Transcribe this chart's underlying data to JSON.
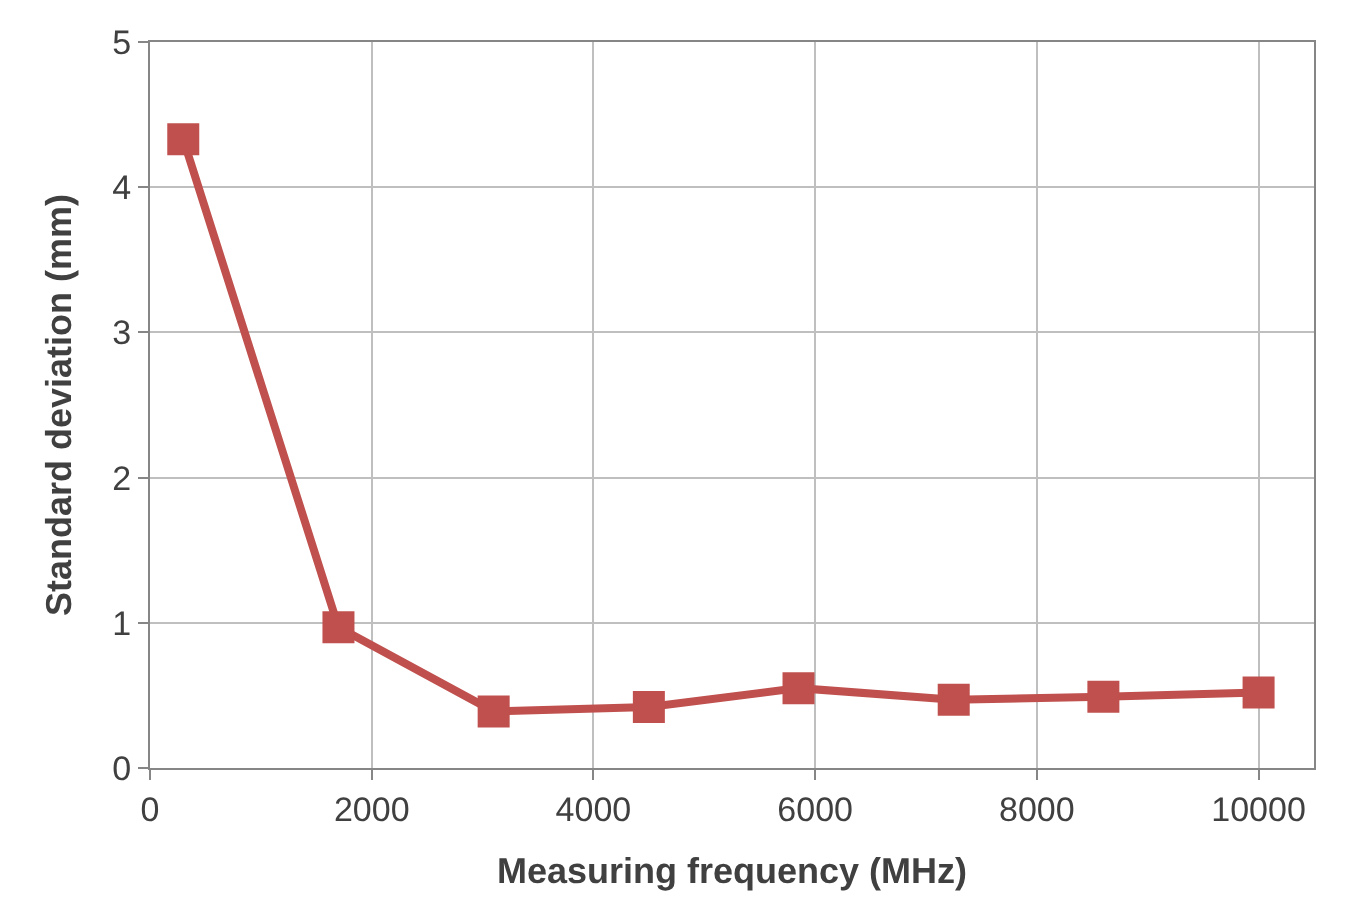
{
  "chart_data": {
    "type": "line",
    "xlabel": "Measuring frequency (MHz)",
    "ylabel": "Standard deviation (mm)",
    "x": [
      300,
      1700,
      3100,
      4500,
      5850,
      7250,
      8600,
      10000
    ],
    "series": [
      {
        "color": "#c0504d",
        "values": [
          4.33,
          0.97,
          0.39,
          0.42,
          0.55,
          0.47,
          0.49,
          0.52
        ]
      }
    ],
    "xlim": [
      0,
      10500
    ],
    "xticks": [
      0,
      2000,
      4000,
      6000,
      8000,
      10000
    ],
    "ylim": [
      0,
      5
    ],
    "yticks": [
      0,
      1,
      2,
      3,
      4,
      5
    ],
    "grid": true,
    "marker": "square",
    "line_style": "solid",
    "legend": false
  }
}
